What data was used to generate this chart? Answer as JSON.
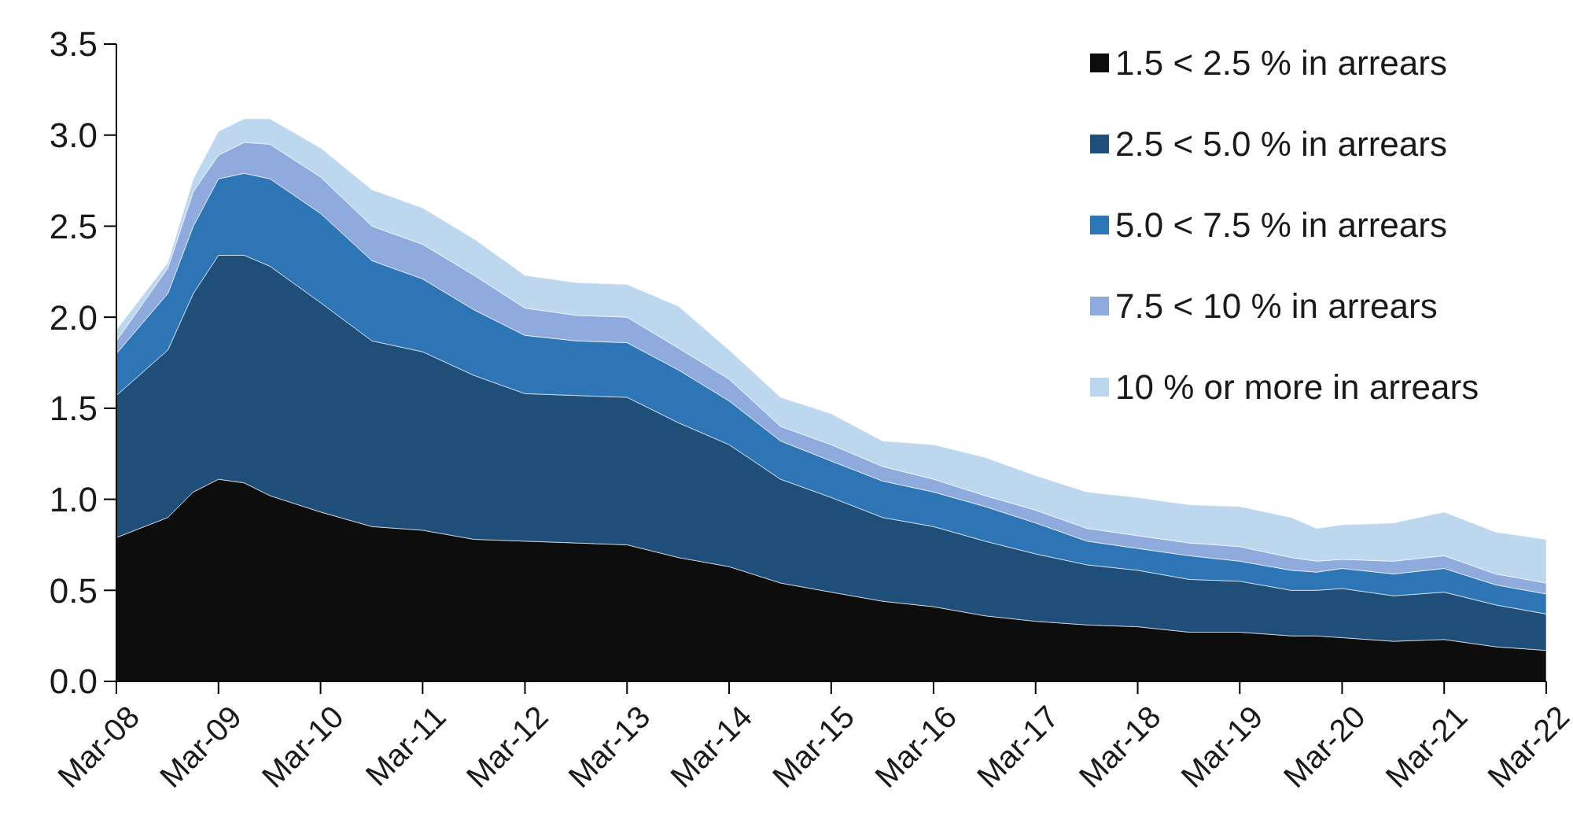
{
  "chart_data": {
    "type": "area",
    "stacked": true,
    "x": [
      "2008-03",
      "2008-09",
      "2008-12",
      "2009-03",
      "2009-06",
      "2009-09",
      "2010-03",
      "2010-09",
      "2011-03",
      "2011-09",
      "2012-03",
      "2012-09",
      "2013-03",
      "2013-09",
      "2014-03",
      "2014-09",
      "2015-03",
      "2015-09",
      "2016-03",
      "2016-09",
      "2017-03",
      "2017-09",
      "2018-03",
      "2018-09",
      "2019-03",
      "2019-09",
      "2019-12",
      "2020-03",
      "2020-09",
      "2021-03",
      "2021-09",
      "2022-03"
    ],
    "series": [
      {
        "name": "1.5 < 2.5 % in arrears",
        "color": "#0d0d0d",
        "values": [
          0.79,
          0.9,
          1.04,
          1.11,
          1.09,
          1.02,
          0.93,
          0.85,
          0.83,
          0.78,
          0.77,
          0.76,
          0.75,
          0.68,
          0.63,
          0.54,
          0.49,
          0.44,
          0.41,
          0.36,
          0.33,
          0.31,
          0.3,
          0.27,
          0.27,
          0.25,
          0.25,
          0.24,
          0.22,
          0.23,
          0.19,
          0.17
        ]
      },
      {
        "name": "2.5 < 5.0 % in arrears",
        "color": "#1f4e79",
        "values": [
          0.78,
          0.92,
          1.09,
          1.23,
          1.25,
          1.26,
          1.15,
          1.02,
          0.98,
          0.9,
          0.81,
          0.81,
          0.81,
          0.74,
          0.67,
          0.57,
          0.52,
          0.46,
          0.44,
          0.41,
          0.37,
          0.33,
          0.31,
          0.29,
          0.28,
          0.25,
          0.25,
          0.27,
          0.25,
          0.26,
          0.23,
          0.2
        ]
      },
      {
        "name": "5.0 < 7.5 % in arrears",
        "color": "#2e75b6",
        "values": [
          0.23,
          0.31,
          0.37,
          0.42,
          0.45,
          0.48,
          0.49,
          0.44,
          0.4,
          0.36,
          0.32,
          0.3,
          0.3,
          0.29,
          0.24,
          0.21,
          0.2,
          0.2,
          0.19,
          0.19,
          0.17,
          0.13,
          0.12,
          0.13,
          0.11,
          0.11,
          0.1,
          0.11,
          0.12,
          0.13,
          0.11,
          0.11
        ]
      },
      {
        "name": "7.5 < 10 % in arrears",
        "color": "#8faadc",
        "values": [
          0.07,
          0.14,
          0.19,
          0.13,
          0.17,
          0.19,
          0.2,
          0.19,
          0.19,
          0.19,
          0.15,
          0.14,
          0.14,
          0.12,
          0.12,
          0.08,
          0.09,
          0.08,
          0.07,
          0.06,
          0.07,
          0.07,
          0.07,
          0.07,
          0.08,
          0.07,
          0.06,
          0.05,
          0.07,
          0.07,
          0.06,
          0.06
        ]
      },
      {
        "name": "10 % or more in arrears",
        "color": "#bdd7ee",
        "values": [
          0.06,
          0.03,
          0.07,
          0.13,
          0.13,
          0.14,
          0.16,
          0.2,
          0.2,
          0.2,
          0.18,
          0.18,
          0.18,
          0.23,
          0.16,
          0.16,
          0.17,
          0.14,
          0.19,
          0.21,
          0.19,
          0.2,
          0.21,
          0.21,
          0.22,
          0.22,
          0.18,
          0.19,
          0.21,
          0.24,
          0.23,
          0.24
        ]
      }
    ],
    "xlim": [
      "2008-03",
      "2022-03"
    ],
    "xticks": [
      {
        "value": "2008-03",
        "label": "Mar-08"
      },
      {
        "value": "2009-03",
        "label": "Mar-09"
      },
      {
        "value": "2010-03",
        "label": "Mar-10"
      },
      {
        "value": "2011-03",
        "label": "Mar-11"
      },
      {
        "value": "2012-03",
        "label": "Mar-12"
      },
      {
        "value": "2013-03",
        "label": "Mar-13"
      },
      {
        "value": "2014-03",
        "label": "Mar-14"
      },
      {
        "value": "2015-03",
        "label": "Mar-15"
      },
      {
        "value": "2016-03",
        "label": "Mar-16"
      },
      {
        "value": "2017-03",
        "label": "Mar-17"
      },
      {
        "value": "2018-03",
        "label": "Mar-18"
      },
      {
        "value": "2019-03",
        "label": "Mar-19"
      },
      {
        "value": "2020-03",
        "label": "Mar-20"
      },
      {
        "value": "2021-03",
        "label": "Mar-21"
      },
      {
        "value": "2022-03",
        "label": "Mar-22"
      }
    ],
    "ylim": [
      0,
      3.5
    ],
    "yticks": [
      {
        "value": 0,
        "label": "0.0"
      },
      {
        "value": 0.5,
        "label": "0.5"
      },
      {
        "value": 1,
        "label": "1.0"
      },
      {
        "value": 1.5,
        "label": "1.5"
      },
      {
        "value": 2,
        "label": "2.0"
      },
      {
        "value": 2.5,
        "label": "2.5"
      },
      {
        "value": 3,
        "label": "3.0"
      },
      {
        "value": 3.5,
        "label": "3.5"
      }
    ],
    "grid": false,
    "legend": "top right"
  }
}
